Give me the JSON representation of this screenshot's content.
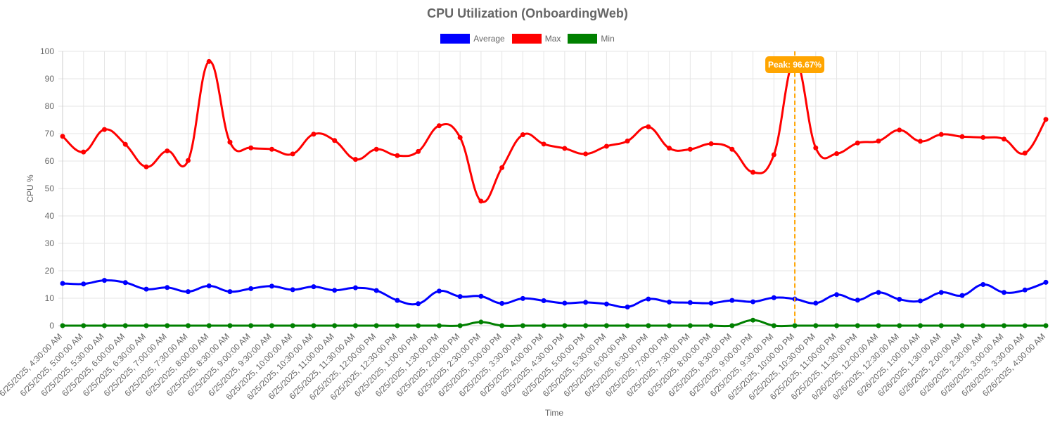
{
  "chart_data": {
    "type": "line",
    "title": "CPU Utilization (OnboardingWeb)",
    "xlabel": "Time",
    "ylabel": "CPU %",
    "ylim": [
      0,
      100
    ],
    "ytick_step": 10,
    "grid": true,
    "legend_position": "top-center",
    "categories": [
      "6/25/2025, 4:30:00 AM",
      "6/25/2025, 5:00:00 AM",
      "6/25/2025, 5:30:00 AM",
      "6/25/2025, 6:00:00 AM",
      "6/25/2025, 6:30:00 AM",
      "6/25/2025, 7:00:00 AM",
      "6/25/2025, 7:30:00 AM",
      "6/25/2025, 8:00:00 AM",
      "6/25/2025, 8:30:00 AM",
      "6/25/2025, 9:00:00 AM",
      "6/25/2025, 9:30:00 AM",
      "6/25/2025, 10:00:00 AM",
      "6/25/2025, 10:30:00 AM",
      "6/25/2025, 11:00:00 AM",
      "6/25/2025, 11:30:00 AM",
      "6/25/2025, 12:00:00 PM",
      "6/25/2025, 12:30:00 PM",
      "6/25/2025, 1:00:00 PM",
      "6/25/2025, 1:30:00 PM",
      "6/25/2025, 2:00:00 PM",
      "6/25/2025, 2:30:00 PM",
      "6/25/2025, 3:00:00 PM",
      "6/25/2025, 3:30:00 PM",
      "6/25/2025, 4:00:00 PM",
      "6/25/2025, 4:30:00 PM",
      "6/25/2025, 5:00:00 PM",
      "6/25/2025, 5:30:00 PM",
      "6/25/2025, 6:00:00 PM",
      "6/25/2025, 6:30:00 PM",
      "6/25/2025, 7:00:00 PM",
      "6/25/2025, 7:30:00 PM",
      "6/25/2025, 8:00:00 PM",
      "6/25/2025, 8:30:00 PM",
      "6/25/2025, 9:00:00 PM",
      "6/25/2025, 9:30:00 PM",
      "6/25/2025, 10:00:00 PM",
      "6/25/2025, 10:30:00 PM",
      "6/25/2025, 11:00:00 PM",
      "6/25/2025, 11:30:00 PM",
      "6/26/2025, 12:00:00 AM",
      "6/26/2025, 12:30:00 AM",
      "6/26/2025, 1:00:00 AM",
      "6/26/2025, 1:30:00 AM",
      "6/26/2025, 2:00:00 AM",
      "6/26/2025, 2:30:00 AM",
      "6/26/2025, 3:00:00 AM",
      "6/26/2025, 3:30:00 AM",
      "6/26/2025, 4:00:00 AM"
    ],
    "series": [
      {
        "name": "Average",
        "color": "#0000ff",
        "values": [
          15.4,
          15.2,
          16.5,
          15.7,
          13.3,
          13.9,
          12.4,
          14.5,
          12.4,
          13.5,
          14.4,
          13.1,
          14.2,
          12.9,
          13.8,
          12.8,
          9.2,
          8.0,
          12.6,
          10.6,
          10.7,
          8.1,
          9.9,
          9.1,
          8.2,
          8.5,
          7.9,
          6.8,
          9.7,
          8.6,
          8.4,
          8.2,
          9.2,
          8.7,
          10.2,
          9.7,
          8.2,
          11.3,
          9.3,
          12.1,
          9.6,
          9.0,
          12.1,
          11.0,
          15.0,
          12.1,
          13.0,
          15.8
        ]
      },
      {
        "name": "Max",
        "color": "#ff0000",
        "values": [
          69.0,
          63.3,
          71.5,
          66.1,
          57.9,
          63.7,
          60.2,
          96.3,
          66.9,
          64.8,
          64.3,
          62.6,
          69.8,
          67.5,
          60.6,
          64.3,
          62.0,
          63.5,
          72.9,
          68.6,
          45.4,
          57.6,
          69.6,
          66.2,
          64.6,
          62.6,
          65.4,
          67.3,
          72.5,
          64.7,
          64.3,
          66.3,
          64.3,
          55.9,
          62.3,
          96.67,
          64.8,
          62.7,
          66.6,
          67.3,
          71.3,
          67.2,
          69.7,
          68.9,
          68.6,
          68.0,
          62.9,
          75.2
        ]
      },
      {
        "name": "Min",
        "color": "#008000",
        "values": [
          0,
          0,
          0,
          0,
          0,
          0,
          0,
          0,
          0,
          0,
          0,
          0,
          0,
          0,
          0,
          0,
          0,
          0,
          0,
          0,
          1.3,
          0,
          0,
          0,
          0,
          0,
          0,
          0,
          0,
          0,
          0,
          0,
          0,
          2.0,
          0,
          0,
          0,
          0,
          0,
          0,
          0,
          0,
          0,
          0,
          0,
          0,
          0,
          0
        ]
      }
    ],
    "annotations": [
      {
        "type": "vertical-line",
        "category_index": 35,
        "label": "Peak: 96.67%",
        "color": "#ffa500"
      }
    ]
  }
}
